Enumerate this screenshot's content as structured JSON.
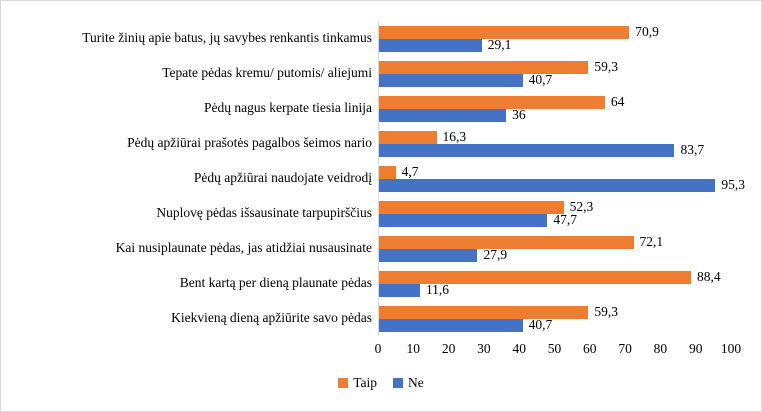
{
  "chart_data": {
    "type": "bar",
    "orientation": "horizontal",
    "title": "",
    "xlabel": "",
    "ylabel": "",
    "xlim": [
      0,
      100
    ],
    "x_ticks": [
      "0",
      "10",
      "20",
      "30",
      "40",
      "50",
      "60",
      "70",
      "80",
      "90",
      "100"
    ],
    "grid": false,
    "legend_position": "bottom-center",
    "categories": [
      "Turite žinių apie batus, jų savybes renkantis tinkamus",
      "Tepate pėdas kremu/ putomis/ aliejumi",
      "Pėdų nagus kerpate tiesia linija",
      "Pėdų apžiūrai prašotės pagalbos šeimos nario",
      "Pėdų apžiūrai naudojate veidrodį",
      "Nuplovę pėdas išsausinate tarpupirščius",
      "Kai nusiplaunate pėdas, jas atidžiai nusausinate",
      "Bent kartą per dieną plaunate pėdas",
      "Kiekvieną dieną apžiūrite savo pėdas"
    ],
    "series": [
      {
        "name": "Taip",
        "color": "#ED7D31",
        "values": [
          70.9,
          59.3,
          64,
          16.3,
          4.7,
          52.3,
          72.1,
          88.4,
          59.3
        ],
        "labels": [
          "70,9",
          "59,3",
          "64",
          "16,3",
          "4,7",
          "52,3",
          "72,1",
          "88,4",
          "59,3"
        ]
      },
      {
        "name": "Ne",
        "color": "#4472C4",
        "values": [
          29.1,
          40.7,
          36,
          83.7,
          95.3,
          47.7,
          27.9,
          11.6,
          40.7
        ],
        "labels": [
          "29,1",
          "40,7",
          "36",
          "83,7",
          "95,3",
          "47,7",
          "27,9",
          "11,6",
          "40,7"
        ]
      }
    ],
    "colors": {
      "axis_line": "#d9d9d9",
      "frame_border": "#d9d9d9",
      "text": "#000000",
      "background": "#ffffff"
    }
  }
}
